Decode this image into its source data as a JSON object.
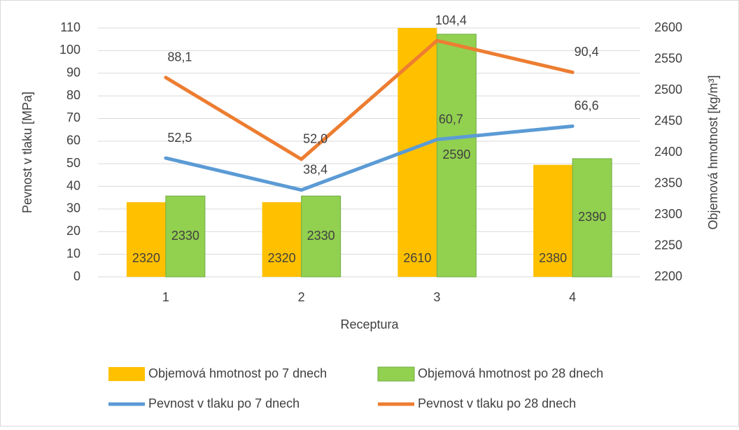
{
  "chart_data": {
    "type": "bar-line",
    "categories": [
      "1",
      "2",
      "3",
      "4"
    ],
    "xlabel": "Receptura",
    "ylabel": "Pevnost v tlaku [MPa]",
    "y2label": "Objemová hmotnost [kg/m³]",
    "ylim": [
      0,
      110
    ],
    "yticks": [
      0,
      10,
      20,
      30,
      40,
      50,
      60,
      70,
      80,
      90,
      100,
      110
    ],
    "y2lim": [
      2200,
      2600
    ],
    "y2ticks": [
      2200,
      2250,
      2300,
      2350,
      2400,
      2450,
      2500,
      2550,
      2600
    ],
    "grid": true,
    "series": [
      {
        "name": "Objemová hmotnost po 7 dnech",
        "type": "bar",
        "axis": "y2",
        "color": "#ffc000",
        "values": [
          2320,
          2320,
          2610,
          2380
        ]
      },
      {
        "name": "Objemová hmotnost po 28 dnech",
        "type": "bar",
        "axis": "y2",
        "color": "#92d050",
        "values": [
          2330,
          2330,
          2590,
          2390
        ]
      },
      {
        "name": "Pevnost v tlaku po 7 dnech",
        "type": "line",
        "color": "#5b9bd5",
        "values": [
          52.5,
          38.4,
          60.7,
          66.6
        ],
        "value_labels": [
          "52,5",
          "38,4",
          "60,7",
          "66,6"
        ]
      },
      {
        "name": "Pevnost v tlaku po 28 dnech",
        "type": "line",
        "color": "#ed7d31",
        "values": [
          88.1,
          52.0,
          104.4,
          90.4
        ],
        "value_labels": [
          "88,1",
          "52,0",
          "104,4",
          "90,4"
        ]
      }
    ]
  }
}
